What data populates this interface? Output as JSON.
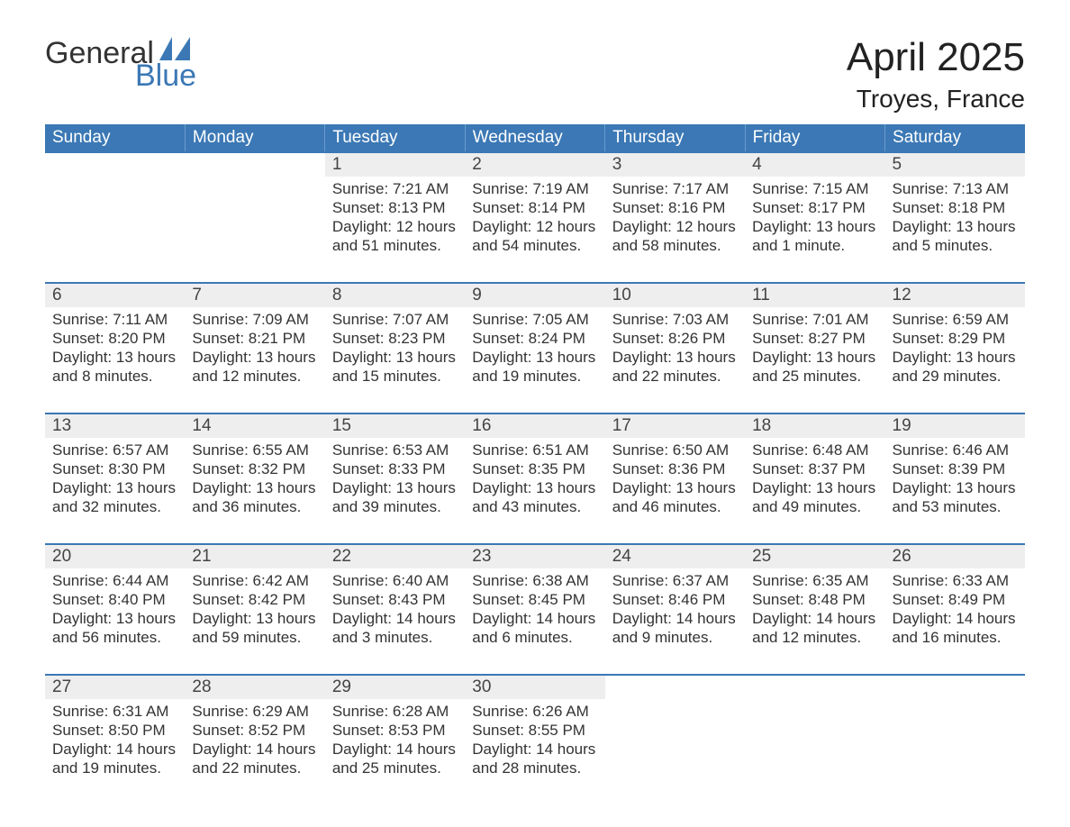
{
  "logo": {
    "word1": "General",
    "word2": "Blue",
    "icon_color": "#3b78b5"
  },
  "title": {
    "month": "April 2025",
    "location": "Troyes, France"
  },
  "style": {
    "header_bg": "#3b78b5",
    "header_text": "#ffffff",
    "daynum_bg": "#eeeeee",
    "row_divider": "#3b78b5",
    "body_text": "#333333",
    "font_family": "Arial",
    "title_fontsize_pt": 33,
    "location_fontsize_pt": 21,
    "header_fontsize_pt": 14,
    "cell_fontsize_pt": 13
  },
  "weekdays": [
    "Sunday",
    "Monday",
    "Tuesday",
    "Wednesday",
    "Thursday",
    "Friday",
    "Saturday"
  ],
  "weeks": [
    [
      null,
      null,
      {
        "n": "1",
        "sunrise": "7:21 AM",
        "sunset": "8:13 PM",
        "daylight": "12 hours and 51 minutes."
      },
      {
        "n": "2",
        "sunrise": "7:19 AM",
        "sunset": "8:14 PM",
        "daylight": "12 hours and 54 minutes."
      },
      {
        "n": "3",
        "sunrise": "7:17 AM",
        "sunset": "8:16 PM",
        "daylight": "12 hours and 58 minutes."
      },
      {
        "n": "4",
        "sunrise": "7:15 AM",
        "sunset": "8:17 PM",
        "daylight": "13 hours and 1 minute."
      },
      {
        "n": "5",
        "sunrise": "7:13 AM",
        "sunset": "8:18 PM",
        "daylight": "13 hours and 5 minutes."
      }
    ],
    [
      {
        "n": "6",
        "sunrise": "7:11 AM",
        "sunset": "8:20 PM",
        "daylight": "13 hours and 8 minutes."
      },
      {
        "n": "7",
        "sunrise": "7:09 AM",
        "sunset": "8:21 PM",
        "daylight": "13 hours and 12 minutes."
      },
      {
        "n": "8",
        "sunrise": "7:07 AM",
        "sunset": "8:23 PM",
        "daylight": "13 hours and 15 minutes."
      },
      {
        "n": "9",
        "sunrise": "7:05 AM",
        "sunset": "8:24 PM",
        "daylight": "13 hours and 19 minutes."
      },
      {
        "n": "10",
        "sunrise": "7:03 AM",
        "sunset": "8:26 PM",
        "daylight": "13 hours and 22 minutes."
      },
      {
        "n": "11",
        "sunrise": "7:01 AM",
        "sunset": "8:27 PM",
        "daylight": "13 hours and 25 minutes."
      },
      {
        "n": "12",
        "sunrise": "6:59 AM",
        "sunset": "8:29 PM",
        "daylight": "13 hours and 29 minutes."
      }
    ],
    [
      {
        "n": "13",
        "sunrise": "6:57 AM",
        "sunset": "8:30 PM",
        "daylight": "13 hours and 32 minutes."
      },
      {
        "n": "14",
        "sunrise": "6:55 AM",
        "sunset": "8:32 PM",
        "daylight": "13 hours and 36 minutes."
      },
      {
        "n": "15",
        "sunrise": "6:53 AM",
        "sunset": "8:33 PM",
        "daylight": "13 hours and 39 minutes."
      },
      {
        "n": "16",
        "sunrise": "6:51 AM",
        "sunset": "8:35 PM",
        "daylight": "13 hours and 43 minutes."
      },
      {
        "n": "17",
        "sunrise": "6:50 AM",
        "sunset": "8:36 PM",
        "daylight": "13 hours and 46 minutes."
      },
      {
        "n": "18",
        "sunrise": "6:48 AM",
        "sunset": "8:37 PM",
        "daylight": "13 hours and 49 minutes."
      },
      {
        "n": "19",
        "sunrise": "6:46 AM",
        "sunset": "8:39 PM",
        "daylight": "13 hours and 53 minutes."
      }
    ],
    [
      {
        "n": "20",
        "sunrise": "6:44 AM",
        "sunset": "8:40 PM",
        "daylight": "13 hours and 56 minutes."
      },
      {
        "n": "21",
        "sunrise": "6:42 AM",
        "sunset": "8:42 PM",
        "daylight": "13 hours and 59 minutes."
      },
      {
        "n": "22",
        "sunrise": "6:40 AM",
        "sunset": "8:43 PM",
        "daylight": "14 hours and 3 minutes."
      },
      {
        "n": "23",
        "sunrise": "6:38 AM",
        "sunset": "8:45 PM",
        "daylight": "14 hours and 6 minutes."
      },
      {
        "n": "24",
        "sunrise": "6:37 AM",
        "sunset": "8:46 PM",
        "daylight": "14 hours and 9 minutes."
      },
      {
        "n": "25",
        "sunrise": "6:35 AM",
        "sunset": "8:48 PM",
        "daylight": "14 hours and 12 minutes."
      },
      {
        "n": "26",
        "sunrise": "6:33 AM",
        "sunset": "8:49 PM",
        "daylight": "14 hours and 16 minutes."
      }
    ],
    [
      {
        "n": "27",
        "sunrise": "6:31 AM",
        "sunset": "8:50 PM",
        "daylight": "14 hours and 19 minutes."
      },
      {
        "n": "28",
        "sunrise": "6:29 AM",
        "sunset": "8:52 PM",
        "daylight": "14 hours and 22 minutes."
      },
      {
        "n": "29",
        "sunrise": "6:28 AM",
        "sunset": "8:53 PM",
        "daylight": "14 hours and 25 minutes."
      },
      {
        "n": "30",
        "sunrise": "6:26 AM",
        "sunset": "8:55 PM",
        "daylight": "14 hours and 28 minutes."
      },
      null,
      null,
      null
    ]
  ],
  "labels": {
    "sunrise_prefix": "Sunrise: ",
    "sunset_prefix": "Sunset: ",
    "daylight_prefix": "Daylight: "
  }
}
